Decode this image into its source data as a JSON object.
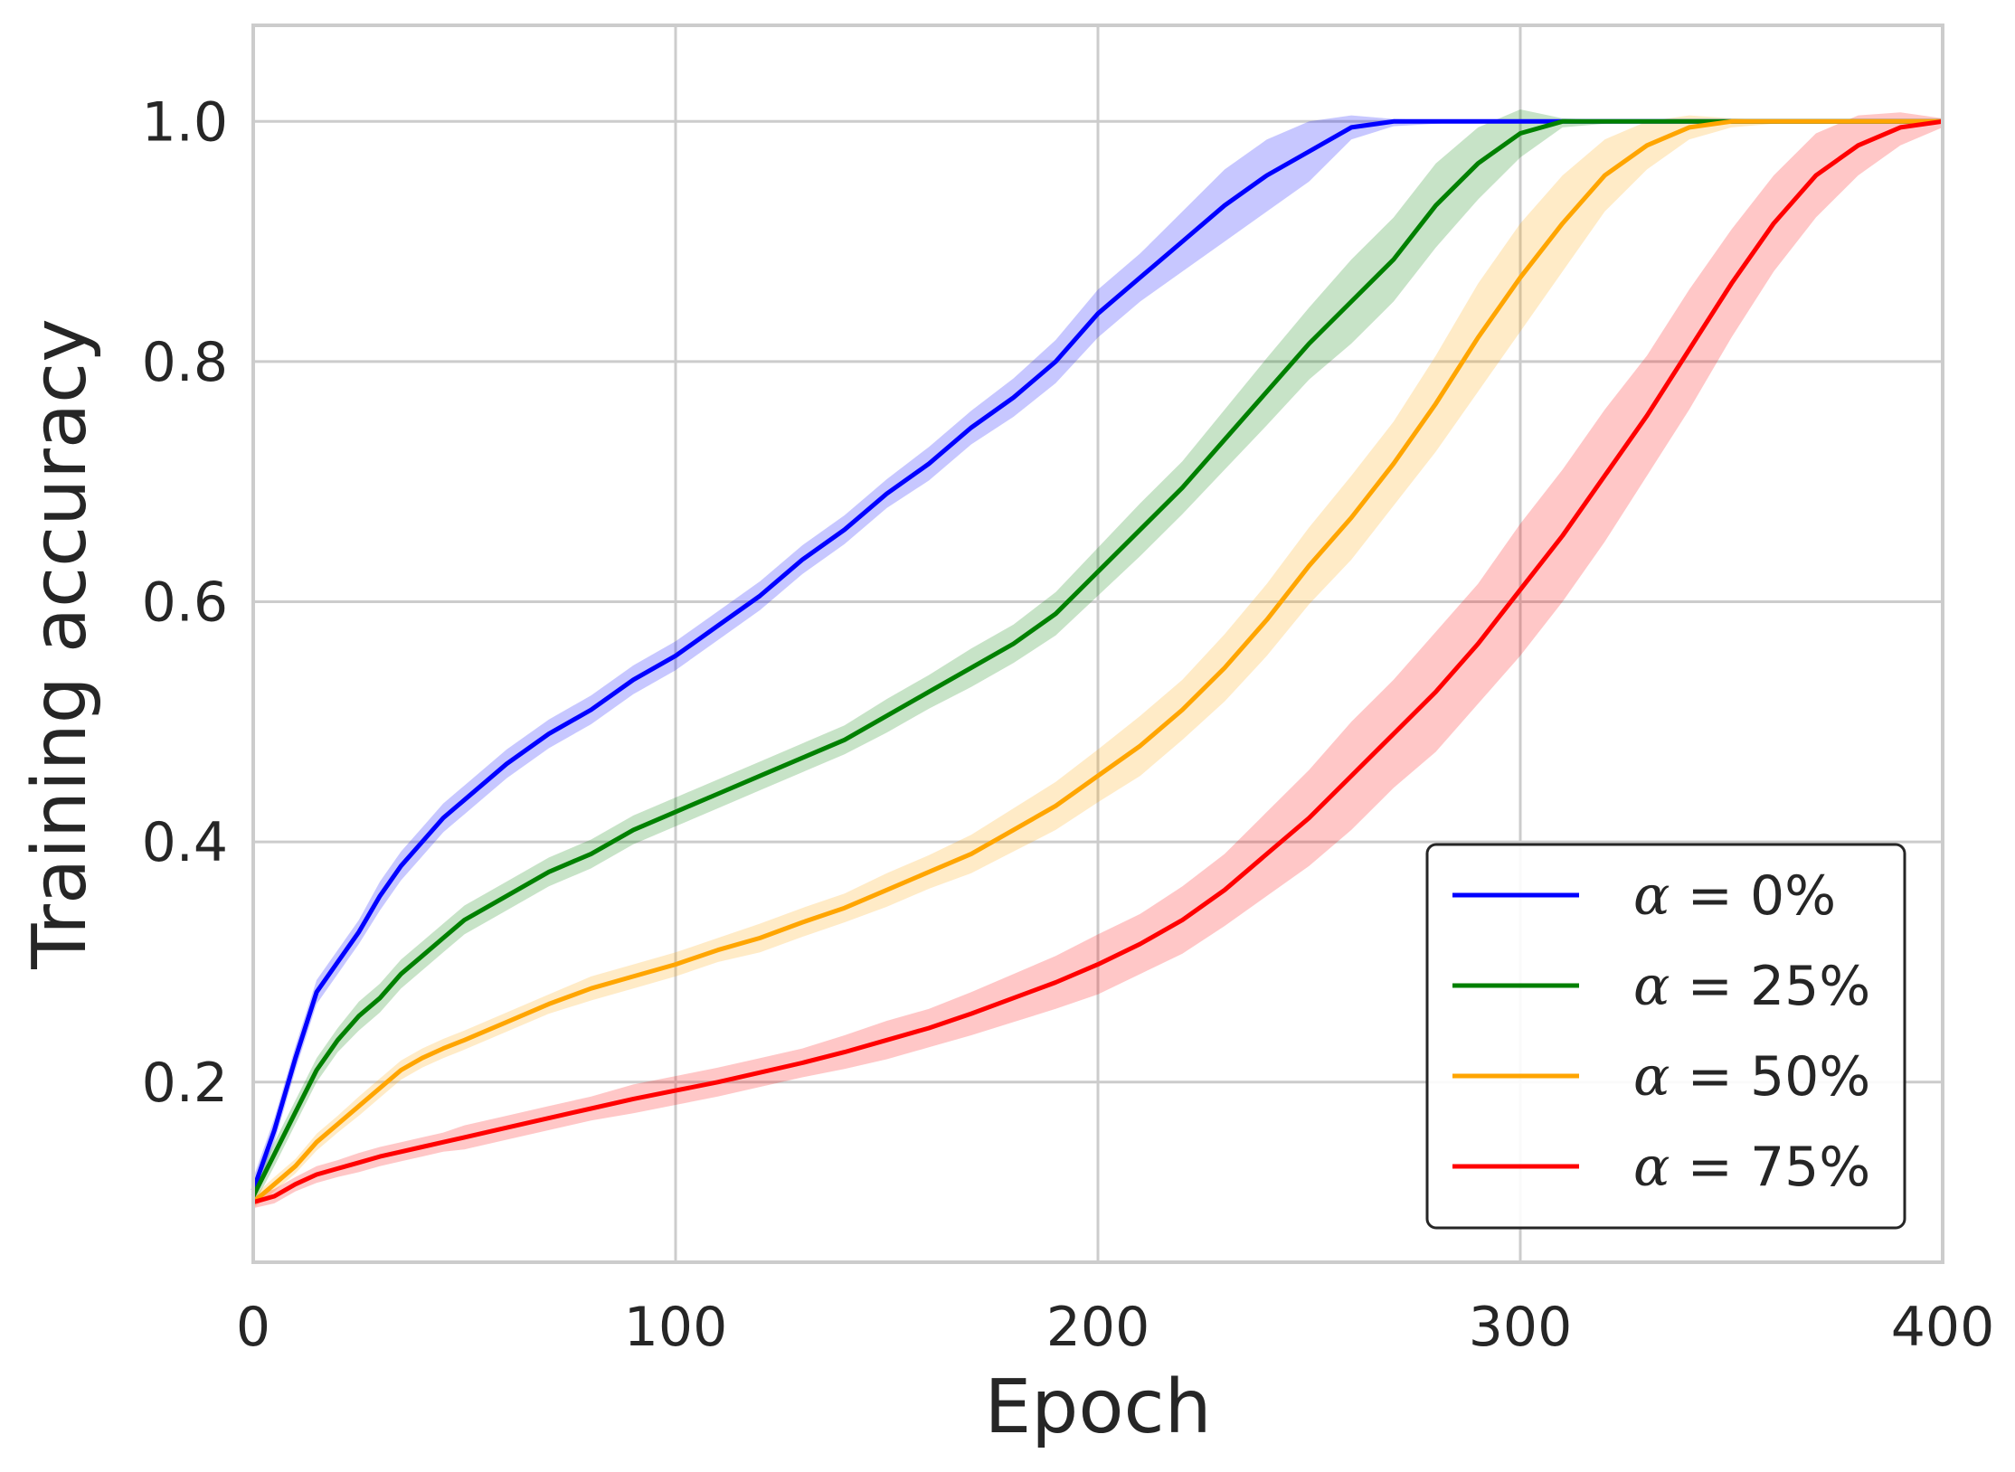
{
  "chart_data": {
    "type": "line",
    "xlabel": "Epoch",
    "ylabel": "Training accuracy",
    "xlim": [
      0,
      400
    ],
    "ylim": [
      0.05,
      1.08
    ],
    "xticks": [
      "0",
      "100",
      "200",
      "300",
      "400"
    ],
    "yticks": [
      "0.2",
      "0.4",
      "0.6",
      "0.8",
      "1.0"
    ],
    "grid": true,
    "legend_position": "bottom-right",
    "x": [
      0,
      5,
      10,
      15,
      20,
      25,
      30,
      35,
      40,
      45,
      50,
      60,
      70,
      80,
      90,
      100,
      110,
      120,
      130,
      140,
      150,
      160,
      170,
      180,
      190,
      200,
      210,
      220,
      230,
      240,
      250,
      260,
      270,
      280,
      290,
      300,
      310,
      320,
      330,
      340,
      350,
      360,
      370,
      380,
      390,
      400
    ],
    "series": [
      {
        "name": "α = 0%",
        "legend_prefix": "α",
        "legend_suffix": " = 0%",
        "color": "#0000ff",
        "values": [
          0.11,
          0.16,
          0.22,
          0.275,
          0.3,
          0.325,
          0.355,
          0.38,
          0.4,
          0.42,
          0.435,
          0.465,
          0.49,
          0.51,
          0.535,
          0.555,
          0.58,
          0.605,
          0.635,
          0.66,
          0.69,
          0.715,
          0.745,
          0.77,
          0.8,
          0.84,
          0.87,
          0.9,
          0.93,
          0.955,
          0.975,
          0.995,
          1.0,
          1.0,
          1.0,
          1.0,
          1.0,
          1.0,
          1.0,
          1.0,
          1.0,
          1.0,
          1.0,
          1.0,
          1.0,
          1.0
        ],
        "band": [
          0.01,
          0.01,
          0.01,
          0.01,
          0.01,
          0.01,
          0.012,
          0.012,
          0.012,
          0.012,
          0.012,
          0.012,
          0.012,
          0.012,
          0.012,
          0.012,
          0.012,
          0.012,
          0.012,
          0.012,
          0.012,
          0.014,
          0.014,
          0.016,
          0.018,
          0.02,
          0.02,
          0.025,
          0.03,
          0.03,
          0.025,
          0.01,
          0.004,
          0.002,
          0.0,
          0.0,
          0.0,
          0.0,
          0.0,
          0.0,
          0.0,
          0.0,
          0.0,
          0.0,
          0.0,
          0.0
        ]
      },
      {
        "name": "α = 25%",
        "legend_prefix": "α",
        "legend_suffix": " = 25%",
        "color": "#008000",
        "values": [
          0.105,
          0.14,
          0.175,
          0.21,
          0.235,
          0.255,
          0.27,
          0.29,
          0.305,
          0.32,
          0.335,
          0.355,
          0.375,
          0.39,
          0.41,
          0.425,
          0.44,
          0.455,
          0.47,
          0.485,
          0.505,
          0.525,
          0.545,
          0.565,
          0.59,
          0.625,
          0.66,
          0.695,
          0.735,
          0.775,
          0.815,
          0.85,
          0.885,
          0.93,
          0.965,
          0.99,
          1.0,
          1.0,
          1.0,
          1.0,
          1.0,
          1.0,
          1.0,
          1.0,
          1.0,
          1.0
        ],
        "band": [
          0.008,
          0.01,
          0.01,
          0.01,
          0.01,
          0.012,
          0.012,
          0.012,
          0.012,
          0.012,
          0.012,
          0.012,
          0.012,
          0.012,
          0.012,
          0.012,
          0.012,
          0.012,
          0.012,
          0.012,
          0.014,
          0.014,
          0.016,
          0.016,
          0.018,
          0.02,
          0.022,
          0.022,
          0.025,
          0.028,
          0.03,
          0.035,
          0.035,
          0.035,
          0.03,
          0.02,
          0.005,
          0.002,
          0.0,
          0.0,
          0.0,
          0.0,
          0.0,
          0.0,
          0.0,
          0.0
        ]
      },
      {
        "name": "α = 50%",
        "legend_prefix": "α",
        "legend_suffix": " = 50%",
        "color": "#ffa500",
        "values": [
          0.1,
          0.115,
          0.13,
          0.15,
          0.165,
          0.18,
          0.195,
          0.21,
          0.22,
          0.228,
          0.235,
          0.25,
          0.265,
          0.278,
          0.288,
          0.298,
          0.31,
          0.32,
          0.333,
          0.345,
          0.36,
          0.375,
          0.39,
          0.41,
          0.43,
          0.455,
          0.48,
          0.51,
          0.545,
          0.585,
          0.63,
          0.67,
          0.715,
          0.765,
          0.82,
          0.87,
          0.915,
          0.955,
          0.98,
          0.995,
          1.0,
          1.0,
          1.0,
          1.0,
          1.0,
          1.0
        ],
        "band": [
          0.005,
          0.006,
          0.006,
          0.007,
          0.007,
          0.008,
          0.008,
          0.008,
          0.008,
          0.008,
          0.008,
          0.008,
          0.008,
          0.01,
          0.01,
          0.01,
          0.01,
          0.012,
          0.012,
          0.012,
          0.014,
          0.014,
          0.016,
          0.018,
          0.02,
          0.022,
          0.025,
          0.025,
          0.028,
          0.03,
          0.032,
          0.035,
          0.035,
          0.04,
          0.045,
          0.045,
          0.04,
          0.03,
          0.02,
          0.01,
          0.005,
          0.002,
          0.0,
          0.0,
          0.0,
          0.0
        ]
      },
      {
        "name": "α = 75%",
        "legend_prefix": "α",
        "legend_suffix": " = 75%",
        "color": "#ff0000",
        "values": [
          0.1,
          0.105,
          0.115,
          0.123,
          0.128,
          0.133,
          0.138,
          0.142,
          0.146,
          0.15,
          0.154,
          0.162,
          0.17,
          0.178,
          0.186,
          0.193,
          0.2,
          0.208,
          0.216,
          0.225,
          0.235,
          0.245,
          0.257,
          0.27,
          0.283,
          0.298,
          0.315,
          0.335,
          0.36,
          0.39,
          0.42,
          0.455,
          0.49,
          0.525,
          0.565,
          0.61,
          0.655,
          0.705,
          0.755,
          0.81,
          0.865,
          0.915,
          0.955,
          0.98,
          0.995,
          1.0
        ],
        "band": [
          0.005,
          0.006,
          0.006,
          0.007,
          0.007,
          0.008,
          0.008,
          0.008,
          0.008,
          0.008,
          0.01,
          0.01,
          0.01,
          0.01,
          0.012,
          0.012,
          0.012,
          0.012,
          0.012,
          0.014,
          0.016,
          0.016,
          0.018,
          0.02,
          0.022,
          0.025,
          0.025,
          0.028,
          0.03,
          0.035,
          0.04,
          0.045,
          0.045,
          0.05,
          0.05,
          0.055,
          0.055,
          0.055,
          0.05,
          0.05,
          0.045,
          0.04,
          0.035,
          0.025,
          0.015,
          0.005
        ]
      }
    ]
  }
}
